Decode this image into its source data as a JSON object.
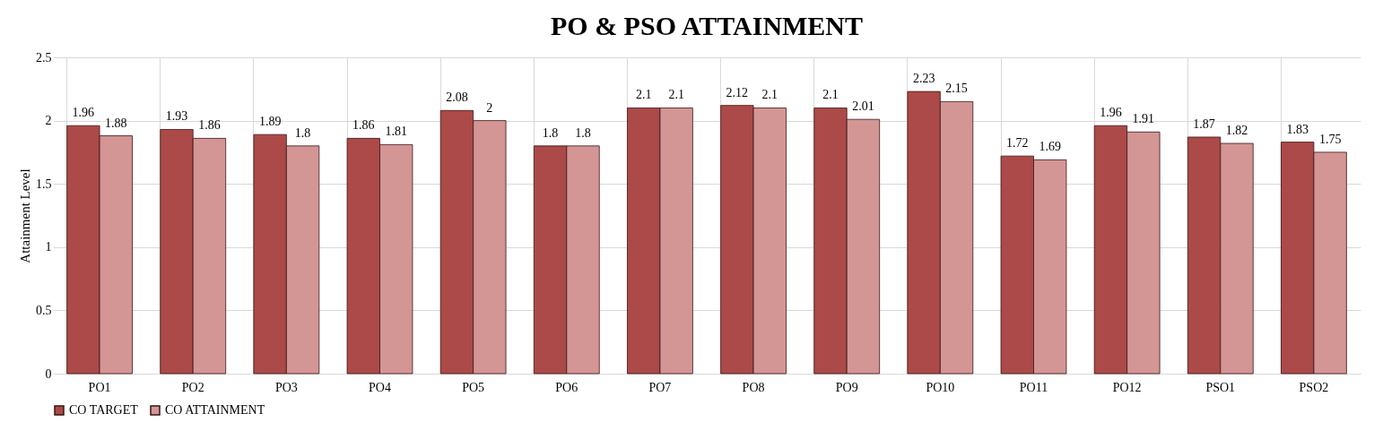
{
  "chart_data": {
    "type": "bar",
    "title": "PO & PSO ATTAINMENT",
    "ylabel": "Attainment Level",
    "categories": [
      "PO1",
      "PO2",
      "PO3",
      "PO4",
      "PO5",
      "PO6",
      "PO7",
      "PO8",
      "PO9",
      "PO10",
      "PO11",
      "PO12",
      "PSO1",
      "PSO2"
    ],
    "series": [
      {
        "name": "CO TARGET",
        "color": "#ab4a48",
        "values": [
          1.96,
          1.93,
          1.89,
          1.86,
          2.08,
          1.8,
          2.1,
          2.12,
          2.1,
          2.23,
          1.72,
          1.96,
          1.87,
          1.83
        ]
      },
      {
        "name": "CO ATTAINMENT",
        "color": "#d49595",
        "values": [
          1.88,
          1.86,
          1.8,
          1.81,
          2,
          1.8,
          2.1,
          2.1,
          2.01,
          2.15,
          1.69,
          1.91,
          1.82,
          1.75
        ]
      }
    ],
    "ylim": [
      0,
      2.5
    ],
    "yticks": [
      0,
      0.5,
      1,
      1.5,
      2,
      2.5
    ],
    "grid": true,
    "legend": "bottom",
    "data_labels": true
  }
}
